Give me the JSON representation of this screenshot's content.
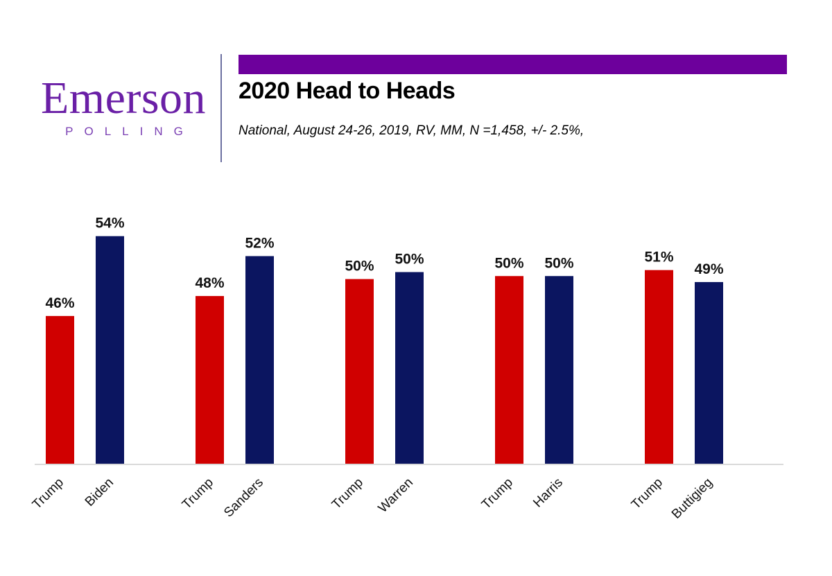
{
  "header": {
    "logo_word": "Emerson",
    "logo_sub": "POLLING",
    "title": "2020 Head to Heads",
    "subtitle": "National, August 24-26, 2019, RV, MM, N =1,458,   +/-  2.5%,"
  },
  "colors": {
    "brand_purple": "#6a1fa6",
    "accent_bar": "#6d009c",
    "republican_red": "#d00000",
    "democrat_navy": "#0b1560",
    "axis_line": "#d9d9d9"
  },
  "chart_data": {
    "type": "bar",
    "title": "2020 Head to Heads",
    "xlabel": "",
    "ylabel": "",
    "ylim": [
      31,
      56
    ],
    "grid": false,
    "legend": "none",
    "groups": [
      {
        "matchup": "Trump vs Biden",
        "bars": [
          {
            "name": "Trump",
            "party": "R",
            "value": 46,
            "label": "46%"
          },
          {
            "name": "Biden",
            "party": "D",
            "value": 54,
            "label": "54%"
          }
        ]
      },
      {
        "matchup": "Trump vs Sanders",
        "bars": [
          {
            "name": "Trump",
            "party": "R",
            "value": 48,
            "label": "48%"
          },
          {
            "name": "Sanders",
            "party": "D",
            "value": 52,
            "label": "52%"
          }
        ]
      },
      {
        "matchup": "Trump vs Warren",
        "bars": [
          {
            "name": "Trump",
            "party": "R",
            "value": 49.7,
            "label": "50%"
          },
          {
            "name": "Warren",
            "party": "D",
            "value": 50.4,
            "label": "50%"
          }
        ]
      },
      {
        "matchup": "Trump vs Harris",
        "bars": [
          {
            "name": "Trump",
            "party": "R",
            "value": 50,
            "label": "50%"
          },
          {
            "name": "Harris",
            "party": "D",
            "value": 50,
            "label": "50%"
          }
        ]
      },
      {
        "matchup": "Trump vs Buttigieg",
        "bars": [
          {
            "name": "Trump",
            "party": "R",
            "value": 50.6,
            "label": "51%"
          },
          {
            "name": "Buttigieg",
            "party": "D",
            "value": 49.4,
            "label": "49%"
          }
        ]
      }
    ]
  }
}
